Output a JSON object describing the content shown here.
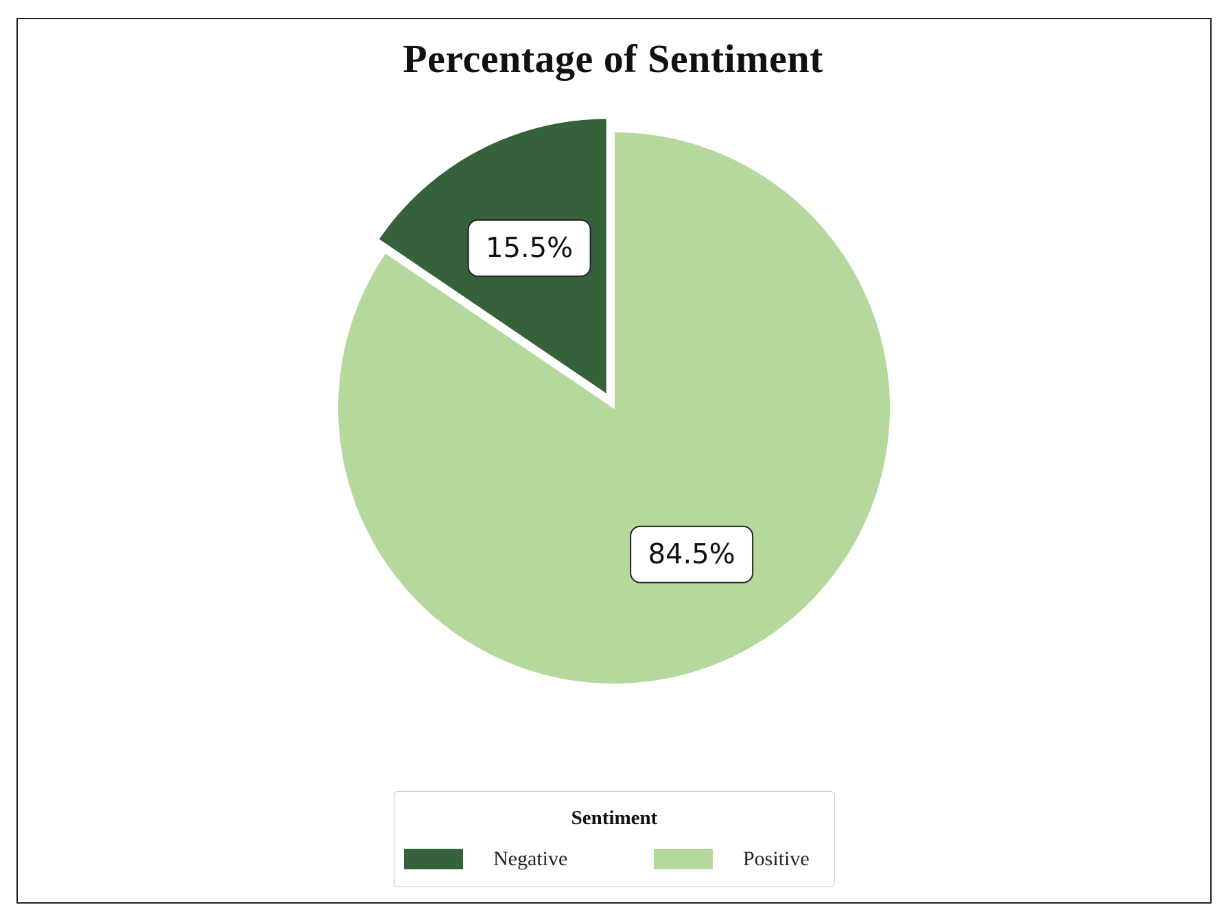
{
  "chart_data": {
    "type": "pie",
    "title": "Percentage of Sentiment",
    "categories": [
      "Negative",
      "Positive"
    ],
    "values": [
      15.5,
      84.5
    ],
    "labels": [
      "15.5%",
      "84.5%"
    ],
    "colors": [
      "#35613b",
      "#b5d99c"
    ],
    "exploded": [
      "Negative"
    ],
    "legend": {
      "title": "Sentiment",
      "placement": "bottom-center",
      "entries": [
        "Negative",
        "Positive"
      ]
    }
  }
}
